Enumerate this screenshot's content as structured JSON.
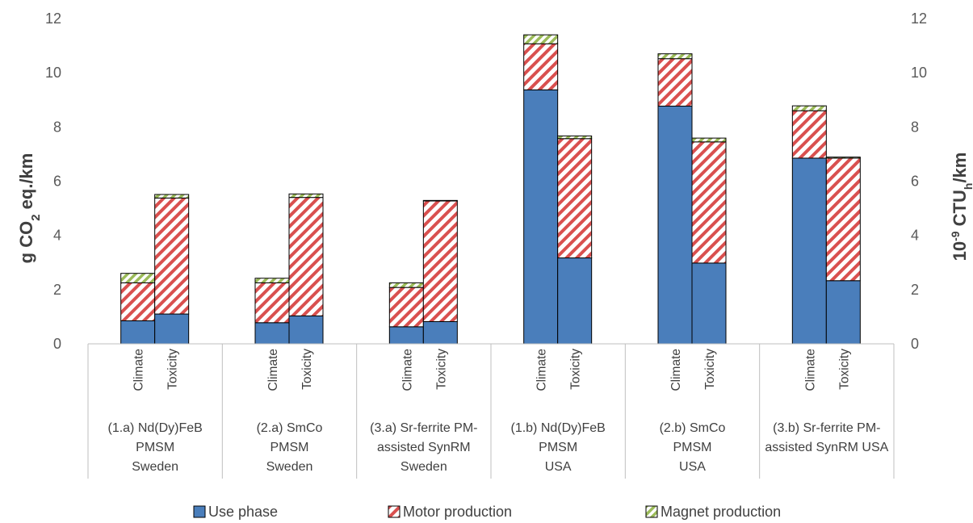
{
  "chart_data": {
    "type": "bar",
    "stacked": true,
    "ylabel_left": {
      "main": "g CO",
      "sub": "2",
      "rest": " eq./km"
    },
    "ylabel_right": {
      "pre": "10",
      "sup": "-9",
      "mid": " CTU",
      "sub": "h",
      "rest": "/km"
    },
    "ylim": [
      0,
      12
    ],
    "yticks": [
      "0",
      "2",
      "4",
      "6",
      "8",
      "10",
      "12"
    ],
    "groups": [
      {
        "label_lines": [
          "(1.a) Nd(Dy)FeB",
          "PMSM",
          "Sweden"
        ]
      },
      {
        "label_lines": [
          "(2.a) SmCo",
          "PMSM",
          "Sweden"
        ]
      },
      {
        "label_lines": [
          "(3.a) Sr-ferrite PM-",
          "assisted SynRM",
          "Sweden"
        ]
      },
      {
        "label_lines": [
          "(1.b) Nd(Dy)FeB",
          "PMSM",
          "USA"
        ]
      },
      {
        "label_lines": [
          "(2.b) SmCo",
          "PMSM",
          "USA"
        ]
      },
      {
        "label_lines": [
          "(3.b) Sr-ferrite PM-",
          "assisted SynRM USA"
        ]
      }
    ],
    "subcategories": [
      "Climate",
      "Toxicity"
    ],
    "series": [
      {
        "name": "Use phase",
        "color": "#4a7ebb",
        "pattern": "solid",
        "values": [
          [
            0.85,
            1.1
          ],
          [
            0.78,
            1.03
          ],
          [
            0.63,
            0.82
          ],
          [
            9.37,
            3.17
          ],
          [
            8.77,
            2.98
          ],
          [
            6.85,
            2.33
          ]
        ]
      },
      {
        "name": "Motor production",
        "color": "#d9504f",
        "pattern": "diagonal-stripes",
        "values": [
          [
            1.4,
            4.28
          ],
          [
            1.47,
            4.37
          ],
          [
            1.45,
            4.45
          ],
          [
            1.7,
            4.4
          ],
          [
            1.75,
            4.47
          ],
          [
            1.75,
            4.52
          ]
        ]
      },
      {
        "name": "Magnet production",
        "color": "#9bbb59",
        "pattern": "diagonal-stripes",
        "values": [
          [
            0.35,
            0.13
          ],
          [
            0.17,
            0.13
          ],
          [
            0.17,
            0.02
          ],
          [
            0.33,
            0.1
          ],
          [
            0.18,
            0.14
          ],
          [
            0.18,
            0.04
          ]
        ]
      }
    ],
    "legend_position": "bottom",
    "grid": false
  }
}
